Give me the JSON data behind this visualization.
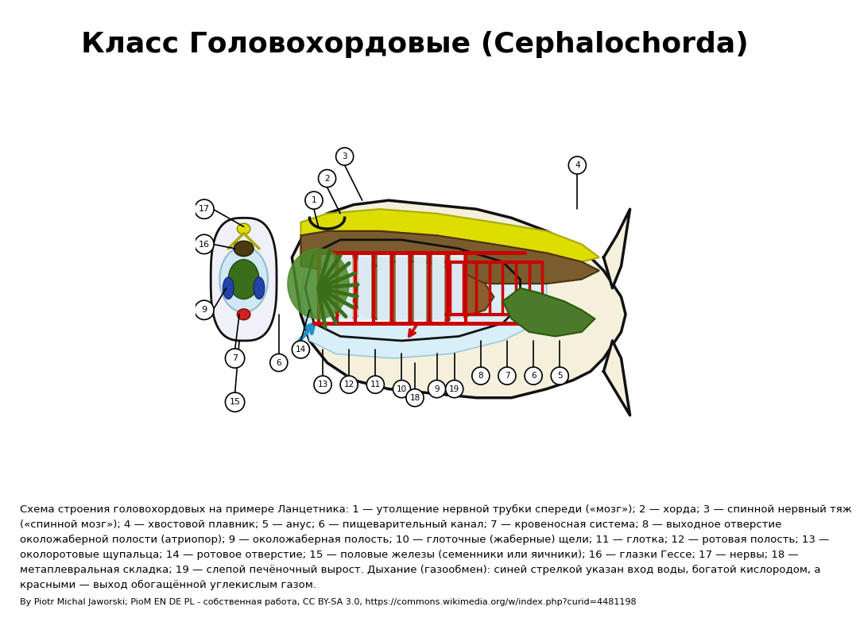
{
  "title": "Класс Головохордовые (Cephalochorda)",
  "title_fontsize": 26,
  "title_fontweight": "bold",
  "description_lines": [
    "Схема строения головохордовых на примере Ланцетника: 1 — утолщение нервной трубки спереди («мозг»); 2 — хорда; 3 — спинной нервный тяж",
    "(«спинной мозг»); 4 — хвостовой плавник; 5 — анус; 6 — пищеварительный канал; 7 — кровеносная система; 8 — выходное отверстие",
    "околожаберной полости (атриопор); 9 — околожаберная полость; 10 — глоточные (жаберные) щели; 11 — глотка; 12 — ротовая полость; 13 —",
    "околоротовые щупальца; 14 — ротовое отверстие; 15 — половые железы (семенники или яичники); 16 — глазки Гессе; 17 — нервы; 18 —",
    "метаплевральная складка; 19 — слепой печёночный вырост. Дыхание (газообмен): синей стрелкой указан вход воды, богатой кислородом, а",
    "красными — выход обогащённой углекислым газом."
  ],
  "credit_text": "By Piotr Michal Jaworski; PioM EN DE PL - собственная работа, CC BY-SA 3.0, https://commons.wikimedia.org/w/index.php?curid=4481198",
  "bg_color": "#ffffff",
  "body_fill": "#F5F0DC",
  "body_edge": "#111111",
  "yellow_fill": "#E8D800",
  "yellow_edge": "#888800",
  "brown_fill": "#7A5C2E",
  "brown_edge": "#3A2E0E",
  "red_color": "#CC0000",
  "green_dark": "#3A6E1A",
  "green_med": "#4A7A1A",
  "blue_arrow": "#1E90CC",
  "atrium_fill": "#D8EEF8",
  "pink_fill": "#E8A090",
  "desc_fontsize": 9.5,
  "credit_fontsize": 8,
  "link_color": "#00AAAA",
  "text_color": "#000000"
}
